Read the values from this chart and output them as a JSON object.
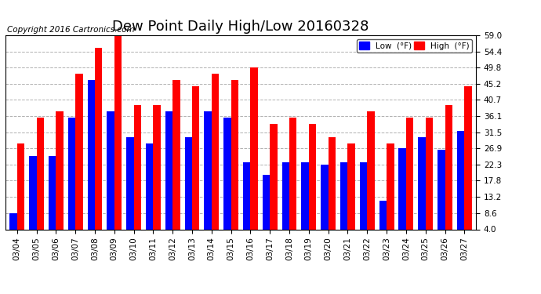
{
  "title": "Dew Point Daily High/Low 20160328",
  "copyright": "Copyright 2016 Cartronics.com",
  "dates": [
    "03/04",
    "03/05",
    "03/06",
    "03/07",
    "03/08",
    "03/09",
    "03/10",
    "03/11",
    "03/12",
    "03/13",
    "03/14",
    "03/15",
    "03/16",
    "03/17",
    "03/18",
    "03/19",
    "03/20",
    "03/21",
    "03/22",
    "03/23",
    "03/24",
    "03/25",
    "03/26",
    "03/27"
  ],
  "low_values": [
    8.6,
    24.8,
    24.8,
    35.6,
    46.4,
    37.4,
    30.2,
    28.4,
    37.4,
    30.2,
    37.4,
    35.6,
    23.0,
    19.4,
    23.0,
    23.0,
    22.3,
    23.0,
    23.0,
    12.2,
    26.9,
    30.2,
    26.6,
    32.0
  ],
  "high_values": [
    28.4,
    35.6,
    37.4,
    48.2,
    55.4,
    59.0,
    39.2,
    39.2,
    46.4,
    44.6,
    48.2,
    46.4,
    50.0,
    33.8,
    35.6,
    33.8,
    30.2,
    28.4,
    37.4,
    28.4,
    35.6,
    35.6,
    39.2,
    44.6
  ],
  "low_color": "#0000ff",
  "high_color": "#ff0000",
  "bg_color": "#ffffff",
  "plot_bg_color": "#ffffff",
  "grid_color": "#b0b0b0",
  "yticks": [
    4.0,
    8.6,
    13.2,
    17.8,
    22.3,
    26.9,
    31.5,
    36.1,
    40.7,
    45.2,
    49.8,
    54.4,
    59.0
  ],
  "ymin": 4.0,
  "ymax": 59.0,
  "title_fontsize": 13,
  "copyright_fontsize": 7.5
}
